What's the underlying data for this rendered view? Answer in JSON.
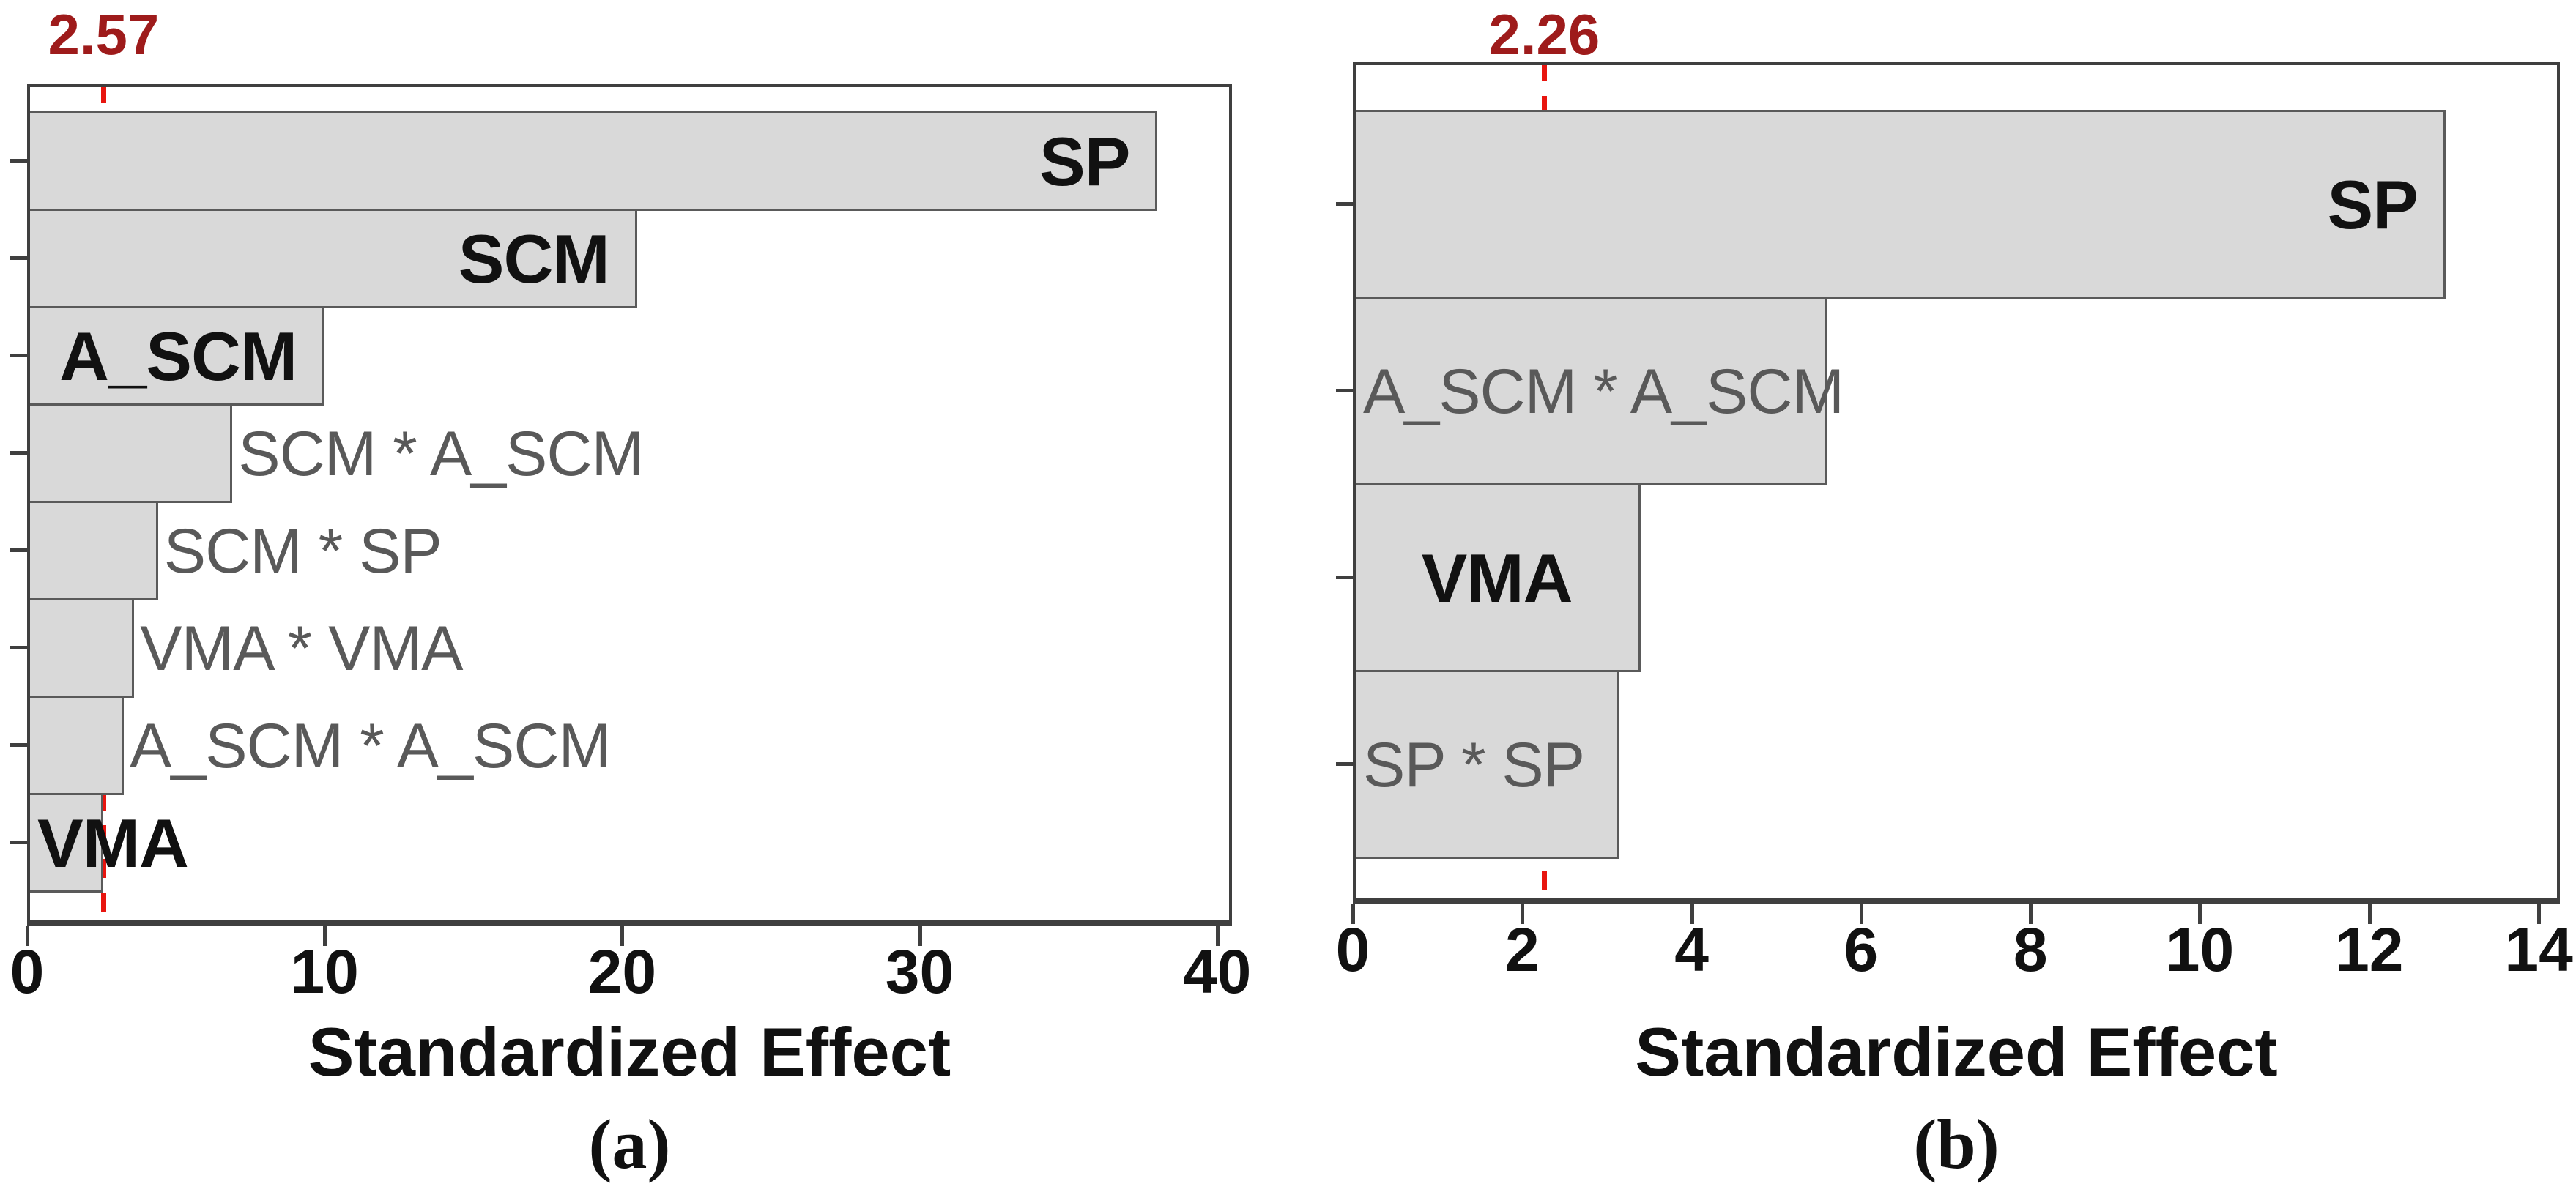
{
  "colors": {
    "bar_fill": "#d9d9d9",
    "bar_border": "#5a5a5a",
    "plot_border": "#3f3f3f",
    "reference_line": "#e8150f",
    "reference_label": "#9e1b1b",
    "muted_label": "#595959",
    "text": "#111111",
    "background": "#ffffff"
  },
  "chart_data": [
    {
      "type": "bar",
      "orientation": "horizontal",
      "panel_label": "(a)",
      "title": "",
      "xlabel": "Standardized Effect",
      "ylabel": "",
      "xlim": [
        0,
        40.5
      ],
      "xticks": [
        0,
        10,
        20,
        30,
        40
      ],
      "grid": false,
      "legend": "none",
      "reference_line": {
        "value": 2.57,
        "label": "2.57"
      },
      "categories": [
        "SP",
        "SCM",
        "A_SCM",
        "SCM * A_SCM",
        "SCM * SP",
        "VMA * VMA",
        "A_SCM * A_SCM",
        "VMA"
      ],
      "values": [
        38.0,
        20.5,
        10.0,
        6.9,
        4.4,
        3.6,
        3.25,
        2.55
      ],
      "bar_label_styles": [
        "strong",
        "strong",
        "strong",
        "muted",
        "muted",
        "muted",
        "muted",
        "strong"
      ],
      "bar_label_placements": [
        "in-right",
        "in-right",
        "in-right",
        "after",
        "after",
        "after",
        "after",
        "in-left"
      ]
    },
    {
      "type": "bar",
      "orientation": "horizontal",
      "panel_label": "(b)",
      "title": "",
      "xlabel": "Standardized Effect",
      "ylabel": "",
      "xlim": [
        0,
        14.25
      ],
      "xticks": [
        0,
        2,
        4,
        6,
        8,
        10,
        12,
        14
      ],
      "grid": false,
      "legend": "none",
      "reference_line": {
        "value": 2.26,
        "label": "2.26"
      },
      "categories": [
        "SP",
        "A_SCM * A_SCM",
        "VMA",
        "SP * SP"
      ],
      "values": [
        12.9,
        5.6,
        3.4,
        3.15
      ],
      "bar_label_styles": [
        "strong",
        "muted",
        "strong",
        "muted"
      ],
      "bar_label_placements": [
        "in-right",
        "in-left",
        "center",
        "in-left"
      ]
    }
  ]
}
